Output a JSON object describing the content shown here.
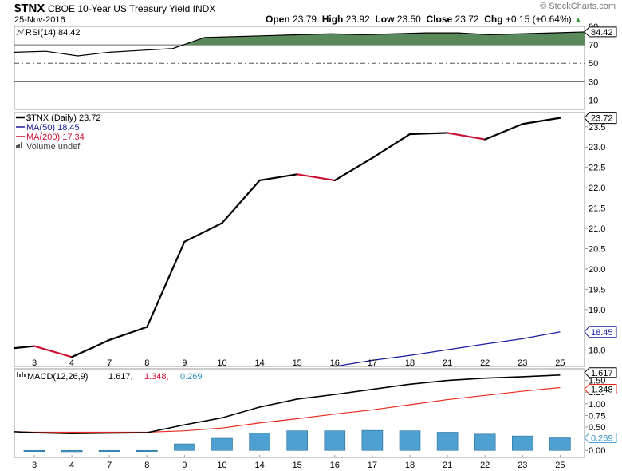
{
  "header": {
    "symbol": "$TNX",
    "description": "CBOE 10-Year US Treasury Yield",
    "exchange": "INDX",
    "date": "25-Nov-2016",
    "open_label": "Open",
    "open": "23.79",
    "high_label": "High",
    "high": "23.92",
    "low_label": "Low",
    "low": "23.50",
    "close_label": "Close",
    "close": "23.72",
    "chg_label": "Chg",
    "chg": "+0.15 (+0.64%)",
    "watermark": "© StockCharts.com"
  },
  "chart_data": [
    {
      "type": "line",
      "panel": "rsi",
      "legend": "RSI(14) 84.42",
      "current_label": "84.42",
      "ylim": [
        0,
        90
      ],
      "yticks": [
        10,
        30,
        50,
        70,
        90
      ],
      "y_tick_labels": [
        "10",
        "30",
        "50",
        "70",
        "90"
      ],
      "reference_lines": [
        30,
        50,
        70
      ],
      "overbought_fill_color": "#5a8a5a",
      "series": [
        {
          "name": "RSI(14)",
          "values": [
            62,
            63,
            58,
            62,
            64,
            66,
            78,
            79,
            80,
            81,
            82,
            81,
            82,
            83,
            83,
            81,
            82,
            83,
            84
          ]
        }
      ]
    },
    {
      "type": "line",
      "panel": "price",
      "legend": [
        {
          "text": "$TNX (Daily) 23.72",
          "color": "#000000"
        },
        {
          "text": "MA(50) 18.45",
          "color": "#1a1aa0"
        },
        {
          "text": "MA(200) 17.34",
          "color": "#cc1133"
        },
        {
          "text": "Volume undef",
          "color": "#444444"
        }
      ],
      "ylim": [
        17.6,
        23.85
      ],
      "yticks": [
        18.0,
        18.5,
        19.0,
        19.5,
        20.0,
        20.5,
        21.0,
        21.5,
        22.0,
        22.5,
        23.0,
        23.5
      ],
      "y_tick_labels": [
        "18.0",
        "18.5",
        "19.0",
        "19.5",
        "20.0",
        "20.5",
        "21.0",
        "21.5",
        "22.0",
        "22.5",
        "23.0",
        "23.5"
      ],
      "x_labels": [
        "3",
        "4",
        "7",
        "8",
        "9",
        "10",
        "14",
        "15",
        "16",
        "17",
        "18",
        "21",
        "22",
        "23",
        "25"
      ],
      "series": [
        {
          "name": "$TNX",
          "x": [
            0,
            0.5,
            1,
            2,
            3,
            4,
            5,
            6,
            7,
            8,
            9,
            10,
            11,
            12,
            13,
            14
          ],
          "values": [
            18.05,
            18.1,
            17.83,
            18.25,
            18.57,
            20.67,
            21.13,
            22.18,
            22.33,
            22.18,
            22.73,
            23.32,
            23.35,
            23.19,
            23.57,
            23.72
          ],
          "down_color": "#cc1133",
          "up_color": "#000000"
        },
        {
          "name": "MA(50)",
          "x": [
            8,
            9,
            10,
            11,
            12,
            13,
            14
          ],
          "values": [
            17.6,
            17.75,
            17.87,
            18.01,
            18.15,
            18.28,
            18.45
          ],
          "color": "#1a1aa0"
        }
      ],
      "current_labels": [
        "23.72",
        "18.45"
      ]
    },
    {
      "type": "line",
      "panel": "macd",
      "legend": [
        {
          "text": "MACD(12,26,9)",
          "color": "#000000"
        },
        {
          "text": "1.617",
          "color": "#000000"
        },
        {
          "text": "1.348",
          "color": "#cc1133"
        },
        {
          "text": "0.269",
          "color": "#2f8fbf"
        }
      ],
      "ylim": [
        -0.15,
        1.75
      ],
      "yticks": [
        0.0,
        0.25,
        0.5,
        0.75,
        1.0,
        1.25,
        1.5
      ],
      "y_tick_labels": [
        "0.00",
        "0.25",
        "0.50",
        "0.75",
        "1.00",
        "1.25",
        "1.50"
      ],
      "x_labels": [
        "3",
        "4",
        "7",
        "8",
        "9",
        "10",
        "14",
        "15",
        "16",
        "17",
        "18",
        "21",
        "22",
        "23",
        "25"
      ],
      "series": [
        {
          "name": "MACD",
          "x": [
            -1,
            0,
            1,
            2,
            3,
            4,
            5,
            6,
            7,
            8,
            9,
            10,
            11,
            12,
            13,
            14
          ],
          "values": [
            0.4,
            0.38,
            0.36,
            0.37,
            0.38,
            0.55,
            0.7,
            0.93,
            1.1,
            1.2,
            1.31,
            1.42,
            1.5,
            1.55,
            1.58,
            1.617
          ],
          "color": "#000000"
        },
        {
          "name": "Signal",
          "x": [
            -1,
            0,
            1,
            2,
            3,
            4,
            5,
            6,
            7,
            8,
            9,
            10,
            11,
            12,
            13,
            14
          ],
          "values": [
            0.4,
            0.39,
            0.39,
            0.39,
            0.39,
            0.42,
            0.48,
            0.59,
            0.68,
            0.78,
            0.87,
            0.98,
            1.09,
            1.18,
            1.27,
            1.348
          ],
          "color": "#e8291c"
        },
        {
          "name": "Histogram",
          "x": [
            0,
            1,
            2,
            3,
            4,
            5,
            6,
            7,
            8,
            9,
            10,
            11,
            12,
            13,
            14
          ],
          "values": [
            -0.02,
            -0.03,
            -0.02,
            -0.01,
            0.14,
            0.26,
            0.37,
            0.42,
            0.42,
            0.43,
            0.42,
            0.39,
            0.35,
            0.31,
            0.269
          ],
          "color": "#4da0d0"
        }
      ],
      "current_labels": [
        "1.617",
        "1.348",
        "0.269"
      ]
    }
  ]
}
